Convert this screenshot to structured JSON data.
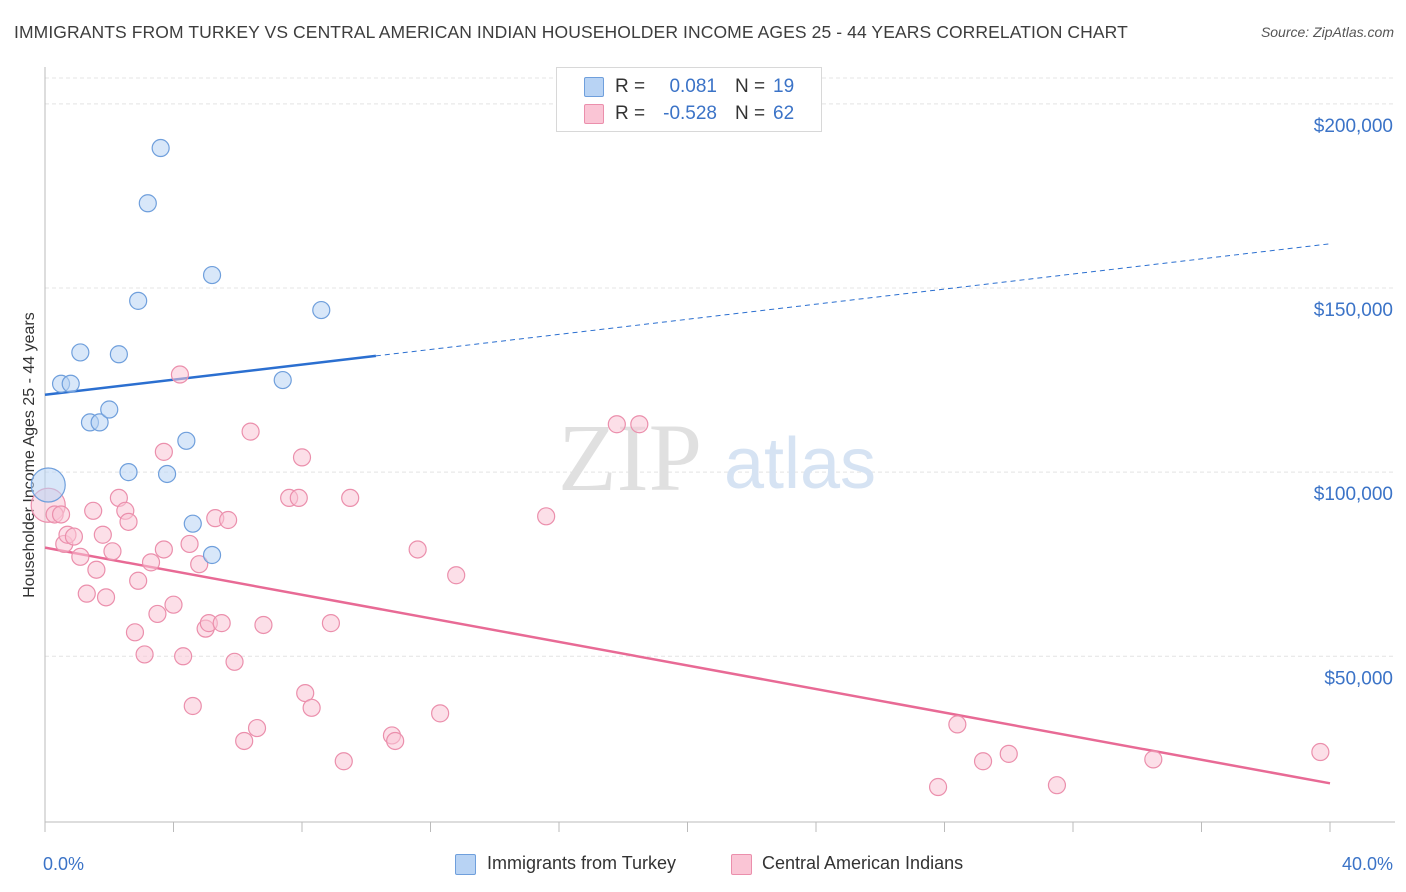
{
  "header": {
    "title": "IMMIGRANTS FROM TURKEY VS CENTRAL AMERICAN INDIAN HOUSEHOLDER INCOME AGES 25 - 44 YEARS CORRELATION CHART",
    "source": "Source: ZipAtlas.com"
  },
  "legend": {
    "r_label": "R =",
    "n_label": "N =",
    "rows": [
      {
        "series": "Immigrants from Turkey",
        "r": "0.081",
        "n": "19",
        "fill": "#b8d3f4",
        "stroke": "#6f9fdc"
      },
      {
        "series": "Central American Indians",
        "r": "-0.528",
        "n": "62",
        "fill": "#fac5d5",
        "stroke": "#eb8fac"
      }
    ]
  },
  "watermark": {
    "zip": "ZIP",
    "atlas": "atlas"
  },
  "colors": {
    "blue": "#3b73c7",
    "blue_line": "#2b6fd0",
    "pink_line": "#e86a95",
    "grid": "#e4e4e4",
    "axis": "#bbbbbb"
  },
  "chart_data": {
    "type": "scatter",
    "title": "IMMIGRANTS FROM TURKEY VS CENTRAL AMERICAN INDIAN HOUSEHOLDER INCOME AGES 25 - 44 YEARS CORRELATION CHART",
    "xlabel": "",
    "ylabel": "Householder Income Ages 25 - 44 years",
    "xlim": [
      0,
      40
    ],
    "ylim": [
      5000,
      210000
    ],
    "x_tick_labels": [
      "0.0%",
      "40.0%"
    ],
    "y_ticks": [
      {
        "value": 50000,
        "label": "$50,000"
      },
      {
        "value": 100000,
        "label": "$100,000"
      },
      {
        "value": 150000,
        "label": "$150,000"
      },
      {
        "value": 200000,
        "label": "$200,000"
      }
    ],
    "grid": true,
    "legend_position": "top-center",
    "series": [
      {
        "name": "Immigrants from Turkey",
        "color": "#6f9fdc",
        "fill": "#b8d3f4",
        "trend": {
          "x0": 0,
          "y0": 121000,
          "x1": 40,
          "y1": 162000,
          "solid_until_x": 10.3
        },
        "points": [
          {
            "x": 0.1,
            "y": 96500,
            "big": true
          },
          {
            "x": 0.5,
            "y": 124000
          },
          {
            "x": 0.8,
            "y": 124000
          },
          {
            "x": 1.1,
            "y": 132500
          },
          {
            "x": 1.4,
            "y": 113500
          },
          {
            "x": 1.7,
            "y": 113500
          },
          {
            "x": 2.0,
            "y": 117000
          },
          {
            "x": 2.3,
            "y": 132000
          },
          {
            "x": 2.6,
            "y": 100000
          },
          {
            "x": 2.9,
            "y": 146500
          },
          {
            "x": 3.2,
            "y": 173000
          },
          {
            "x": 3.6,
            "y": 188000
          },
          {
            "x": 3.8,
            "y": 99500
          },
          {
            "x": 4.4,
            "y": 108500
          },
          {
            "x": 4.6,
            "y": 86000
          },
          {
            "x": 5.2,
            "y": 77500
          },
          {
            "x": 5.2,
            "y": 153500
          },
          {
            "x": 7.4,
            "y": 125000
          },
          {
            "x": 8.6,
            "y": 144000
          }
        ]
      },
      {
        "name": "Central American Indians",
        "color": "#eb8fac",
        "fill": "#fac5d5",
        "trend": {
          "x0": 0,
          "y0": 79500,
          "x1": 40,
          "y1": 15500
        },
        "points": [
          {
            "x": 0.1,
            "y": 91000,
            "big": true
          },
          {
            "x": 0.3,
            "y": 88500
          },
          {
            "x": 0.5,
            "y": 88500
          },
          {
            "x": 0.6,
            "y": 80500
          },
          {
            "x": 0.7,
            "y": 83000
          },
          {
            "x": 0.9,
            "y": 82500
          },
          {
            "x": 1.1,
            "y": 77000
          },
          {
            "x": 1.3,
            "y": 67000
          },
          {
            "x": 1.5,
            "y": 89500
          },
          {
            "x": 1.6,
            "y": 73500
          },
          {
            "x": 1.8,
            "y": 83000
          },
          {
            "x": 1.9,
            "y": 66000
          },
          {
            "x": 2.1,
            "y": 78500
          },
          {
            "x": 2.3,
            "y": 93000
          },
          {
            "x": 2.5,
            "y": 89500
          },
          {
            "x": 2.6,
            "y": 86500
          },
          {
            "x": 2.8,
            "y": 56500
          },
          {
            "x": 2.9,
            "y": 70500
          },
          {
            "x": 3.1,
            "y": 50500
          },
          {
            "x": 3.3,
            "y": 75500
          },
          {
            "x": 3.5,
            "y": 61500
          },
          {
            "x": 3.7,
            "y": 105500
          },
          {
            "x": 3.7,
            "y": 79000
          },
          {
            "x": 4.0,
            "y": 64000
          },
          {
            "x": 4.2,
            "y": 126500
          },
          {
            "x": 4.3,
            "y": 50000
          },
          {
            "x": 4.5,
            "y": 80500
          },
          {
            "x": 4.6,
            "y": 36500
          },
          {
            "x": 4.8,
            "y": 75000
          },
          {
            "x": 5.0,
            "y": 57500
          },
          {
            "x": 5.1,
            "y": 59000
          },
          {
            "x": 5.3,
            "y": 87500
          },
          {
            "x": 5.5,
            "y": 59000
          },
          {
            "x": 5.7,
            "y": 87000
          },
          {
            "x": 5.9,
            "y": 48500
          },
          {
            "x": 6.2,
            "y": 27000
          },
          {
            "x": 6.4,
            "y": 111000
          },
          {
            "x": 6.6,
            "y": 30500
          },
          {
            "x": 6.8,
            "y": 58500
          },
          {
            "x": 7.6,
            "y": 93000
          },
          {
            "x": 7.9,
            "y": 93000
          },
          {
            "x": 8.0,
            "y": 104000
          },
          {
            "x": 8.1,
            "y": 40000
          },
          {
            "x": 8.3,
            "y": 36000
          },
          {
            "x": 8.9,
            "y": 59000
          },
          {
            "x": 9.3,
            "y": 21500
          },
          {
            "x": 9.5,
            "y": 93000
          },
          {
            "x": 10.8,
            "y": 28500
          },
          {
            "x": 10.9,
            "y": 27000
          },
          {
            "x": 11.6,
            "y": 79000
          },
          {
            "x": 12.3,
            "y": 34500
          },
          {
            "x": 12.8,
            "y": 72000
          },
          {
            "x": 15.6,
            "y": 88000
          },
          {
            "x": 17.8,
            "y": 113000
          },
          {
            "x": 18.5,
            "y": 113000
          },
          {
            "x": 27.8,
            "y": 14500
          },
          {
            "x": 28.4,
            "y": 31500
          },
          {
            "x": 29.2,
            "y": 21500
          },
          {
            "x": 30.0,
            "y": 23500
          },
          {
            "x": 31.5,
            "y": 15000
          },
          {
            "x": 34.5,
            "y": 22000
          },
          {
            "x": 39.7,
            "y": 24000
          }
        ]
      }
    ]
  }
}
